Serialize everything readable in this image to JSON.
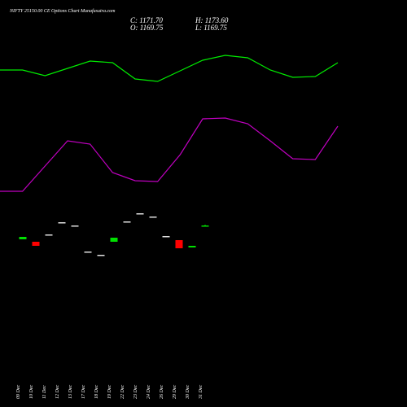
{
  "chart_data": {
    "type": "candlestick",
    "title": "NIFTY 25150.00  CE Options  Chart Munafasutra.com",
    "ohlc_labels": {
      "close": "C: 1171.70",
      "high": "H: 1173.60",
      "open": "O: 1169.75",
      "low": "L: 1169.75"
    },
    "categories": [
      "09 Dec",
      "10 Dec",
      "11 Dec",
      "12 Dec",
      "13 Dec",
      "17 Dec",
      "18 Dec",
      "19 Dec",
      "22 Dec",
      "23 Dec",
      "24 Dec",
      "26 Dec",
      "29 Dec",
      "30 Dec",
      "31 Dec"
    ],
    "open": [
      1137.7,
      1131.7,
      1149.7,
      1179.7,
      1171.7,
      1107.7,
      1099.7,
      1131.7,
      1181.7,
      1201.7,
      1193.7,
      1145.7,
      1135.7,
      1117.7,
      1169.75
    ],
    "high": [
      1143.7,
      1131.7,
      1149.7,
      1179.7,
      1171.7,
      1107.7,
      1099.7,
      1141.7,
      1181.7,
      1201.7,
      1193.7,
      1145.7,
      1135.7,
      1121.7,
      1173.6
    ],
    "low": [
      1137.7,
      1121.7,
      1149.7,
      1179.7,
      1171.7,
      1107.7,
      1099.7,
      1131.7,
      1181.7,
      1201.7,
      1193.7,
      1145.7,
      1115.7,
      1117.7,
      1169.75
    ],
    "close": [
      1143.7,
      1121.7,
      1149.7,
      1179.7,
      1171.7,
      1107.7,
      1099.7,
      1141.7,
      1181.7,
      1201.7,
      1193.7,
      1145.7,
      1115.7,
      1121.7,
      1171.7
    ],
    "ylim": [
      1080,
      1230
    ],
    "up_color": "#00e000",
    "down_color": "#ff0000",
    "flat_color": "#e0e0e0",
    "x": [
      0,
      1,
      2,
      3,
      4,
      5,
      6,
      7,
      8,
      9,
      10,
      11,
      12,
      13,
      14,
      15
    ],
    "xlim": [
      0,
      15
    ],
    "y2lim": [
      0,
      100
    ],
    "series": [
      {
        "color": "#00ee00",
        "axis": "y2",
        "values": [
          82,
          82,
          78.5,
          83,
          87.5,
          86.5,
          76.5,
          75,
          81.5,
          88,
          91,
          89.5,
          82,
          77.5,
          78,
          86.5
        ]
      },
      {
        "color": "#c000c0",
        "axis": "y2",
        "values": [
          7.5,
          7.5,
          23,
          38.5,
          36.5,
          19,
          14,
          13.5,
          30,
          52,
          52.5,
          49,
          38.5,
          27.5,
          27,
          47.5
        ]
      }
    ]
  }
}
